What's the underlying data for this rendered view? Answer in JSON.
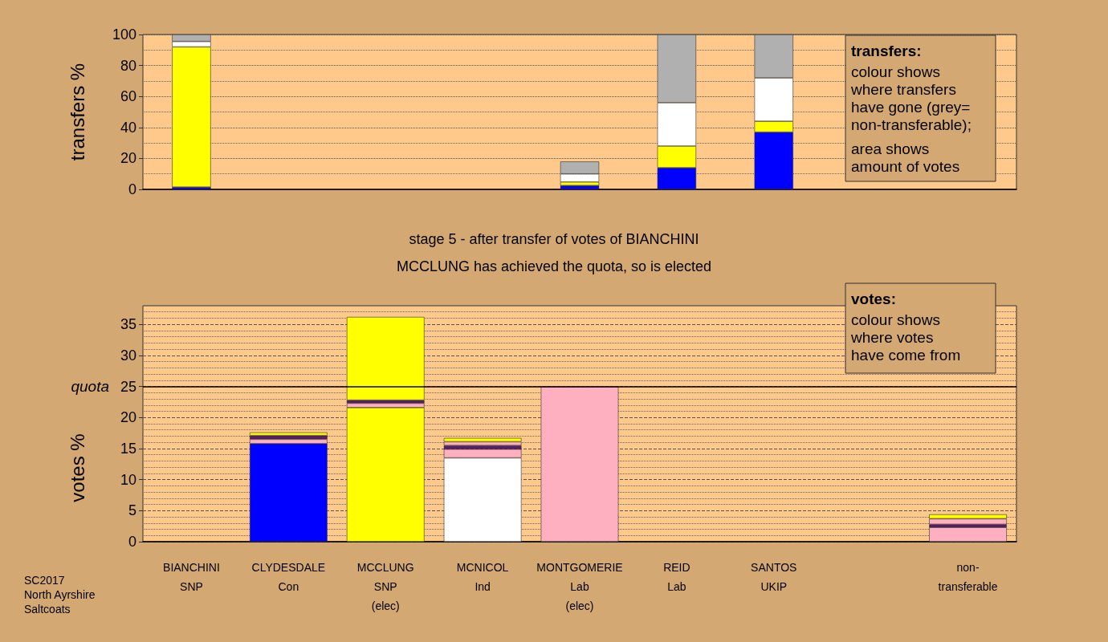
{
  "chart_data": [
    {
      "type": "bar",
      "stacked": true,
      "ylabel": "transfers %",
      "categories": [
        null,
        null,
        null,
        null,
        null,
        null,
        null,
        null,
        null
      ],
      "series": [
        {
          "color": "#0000ff",
          "values": [
            1.5,
            null,
            null,
            null,
            2.5,
            14,
            37,
            null,
            null
          ]
        },
        {
          "color": "#ffff00",
          "values": [
            90.5,
            null,
            null,
            null,
            2.3,
            14,
            7,
            null,
            null
          ]
        },
        {
          "color": "#ffffff",
          "values": [
            3.5,
            null,
            null,
            null,
            5.2,
            28,
            28,
            null,
            null
          ]
        },
        {
          "color": "#b0b0b0",
          "values": [
            4.5,
            null,
            null,
            null,
            8,
            44,
            28,
            null,
            null
          ]
        }
      ],
      "ylim": [
        0,
        100
      ],
      "yticks": [
        0,
        20,
        40,
        60,
        80,
        100
      ],
      "grid": true,
      "tick_labels": "y",
      "annotations": [
        "transfers:",
        "colour shows\nwhere transfers\nhave gone (grey=\nnon-transferable);",
        "area shows\namount of votes"
      ]
    },
    {
      "type": "bar",
      "stacked": true,
      "title": "stage 5 - after transfer of votes of BIANCHINI",
      "subtitle": "MCCLUNG has achieved the quota, so is elected",
      "ylabel": "votes %",
      "categories": [
        "BIANCHINI\nSNP",
        "CLYDESDALE\nCon",
        "MCCLUNG\nSNP\n(elec)",
        "MCNICOL\nInd",
        "MONTGOMERIE\nLab\n(elec)",
        "REID\nLab",
        "SANTOS\nUKIP",
        null,
        "non-\ntransferable"
      ],
      "series": [
        {
          "colors": [
            null,
            "#0000ff",
            "#ffff00",
            "#ffffff",
            "#ffb0c0",
            null,
            null,
            null,
            null
          ],
          "values": [
            null,
            15.8,
            21.6,
            13.5,
            25,
            null,
            null,
            null,
            null
          ]
        },
        {
          "color": "#ffb0c0",
          "values": [
            null,
            0.7,
            0.7,
            1.4,
            null,
            null,
            null,
            null,
            2.3
          ]
        },
        {
          "color": "#5a1a6e",
          "values": [
            null,
            0.6,
            0.5,
            0.6,
            null,
            null,
            null,
            null,
            0.5
          ]
        },
        {
          "color": "#ffb0c0",
          "values": [
            null,
            null,
            null,
            0.6,
            null,
            null,
            null,
            null,
            0.9
          ]
        },
        {
          "color": "#ffff00",
          "values": [
            null,
            0.5,
            13.4,
            0.6,
            null,
            null,
            null,
            null,
            0.7
          ]
        }
      ],
      "ylim": [
        0,
        38
      ],
      "yticks": [
        0,
        5,
        10,
        15,
        20,
        25,
        30,
        35
      ],
      "grid": true,
      "ref_lines": [
        {
          "axis": "y",
          "value": 25,
          "label": "quota",
          "color": "#000000"
        }
      ],
      "annotations": [
        "votes:",
        "colour shows\nwhere votes\nhave come from",
        "SC2017\nNorth Ayrshire\nSaltcoats"
      ]
    }
  ]
}
